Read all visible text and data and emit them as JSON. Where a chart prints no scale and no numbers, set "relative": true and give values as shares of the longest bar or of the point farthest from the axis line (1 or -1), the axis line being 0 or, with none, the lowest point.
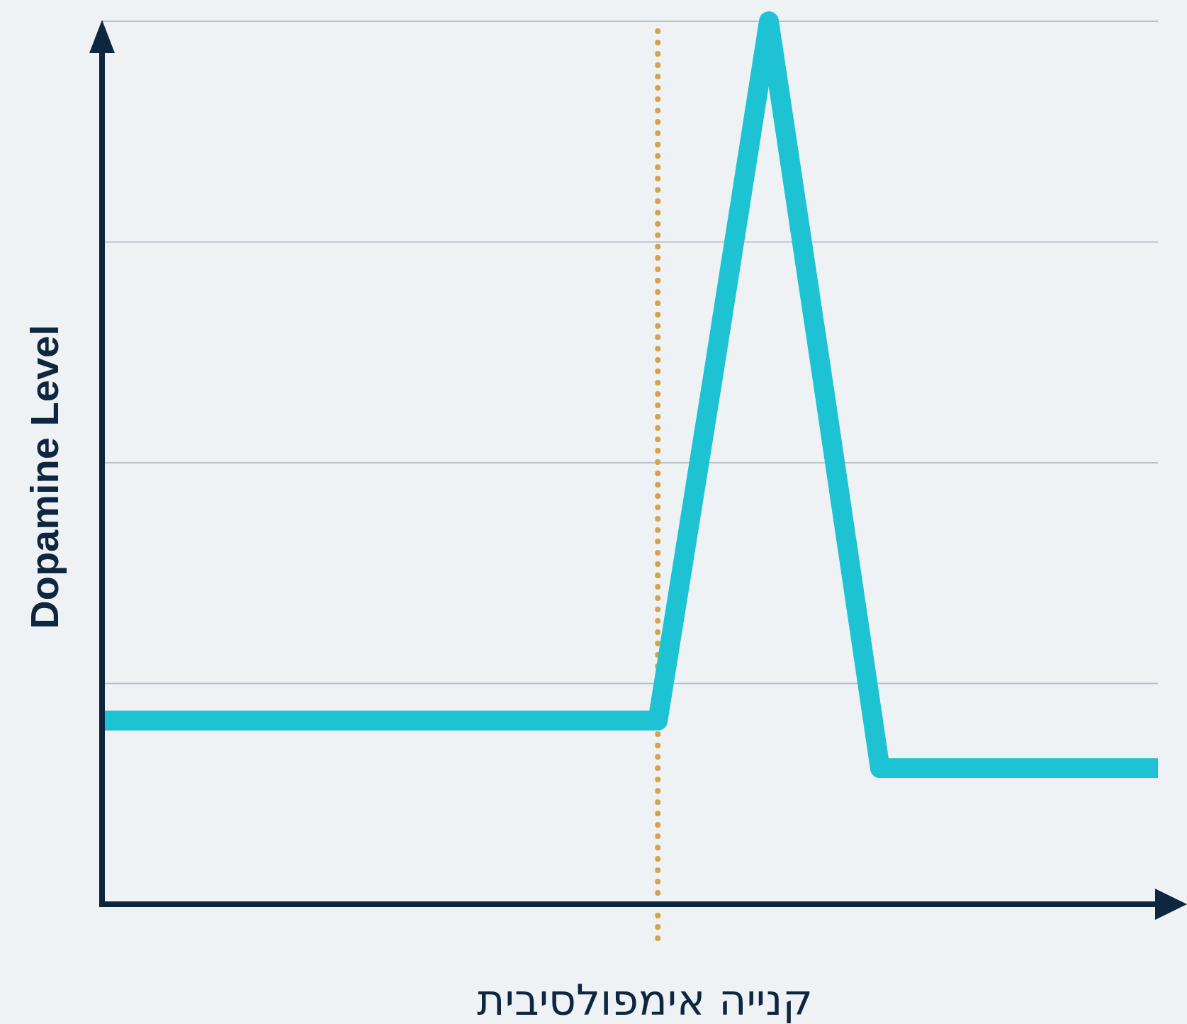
{
  "chart_data": {
    "type": "line",
    "relative": true,
    "xlabel": "קנייה אימפולסיבית",
    "ylabel": "Dopamine Level",
    "grid": "y",
    "categories": [
      null,
      null,
      null,
      null,
      null,
      null,
      null,
      null,
      null,
      null,
      null,
      null,
      null,
      null,
      null,
      null,
      null,
      null,
      null,
      null
    ],
    "series": [
      {
        "color": "#1ec3d3",
        "values": [
          0.208,
          0.208,
          0.208,
          0.208,
          0.208,
          0.208,
          0.208,
          0.208,
          0.208,
          0.208,
          0.208,
          0.6,
          1,
          0.58,
          0.154,
          0.154,
          0.154,
          0.154,
          0.154,
          0.154
        ]
      }
    ]
  }
}
